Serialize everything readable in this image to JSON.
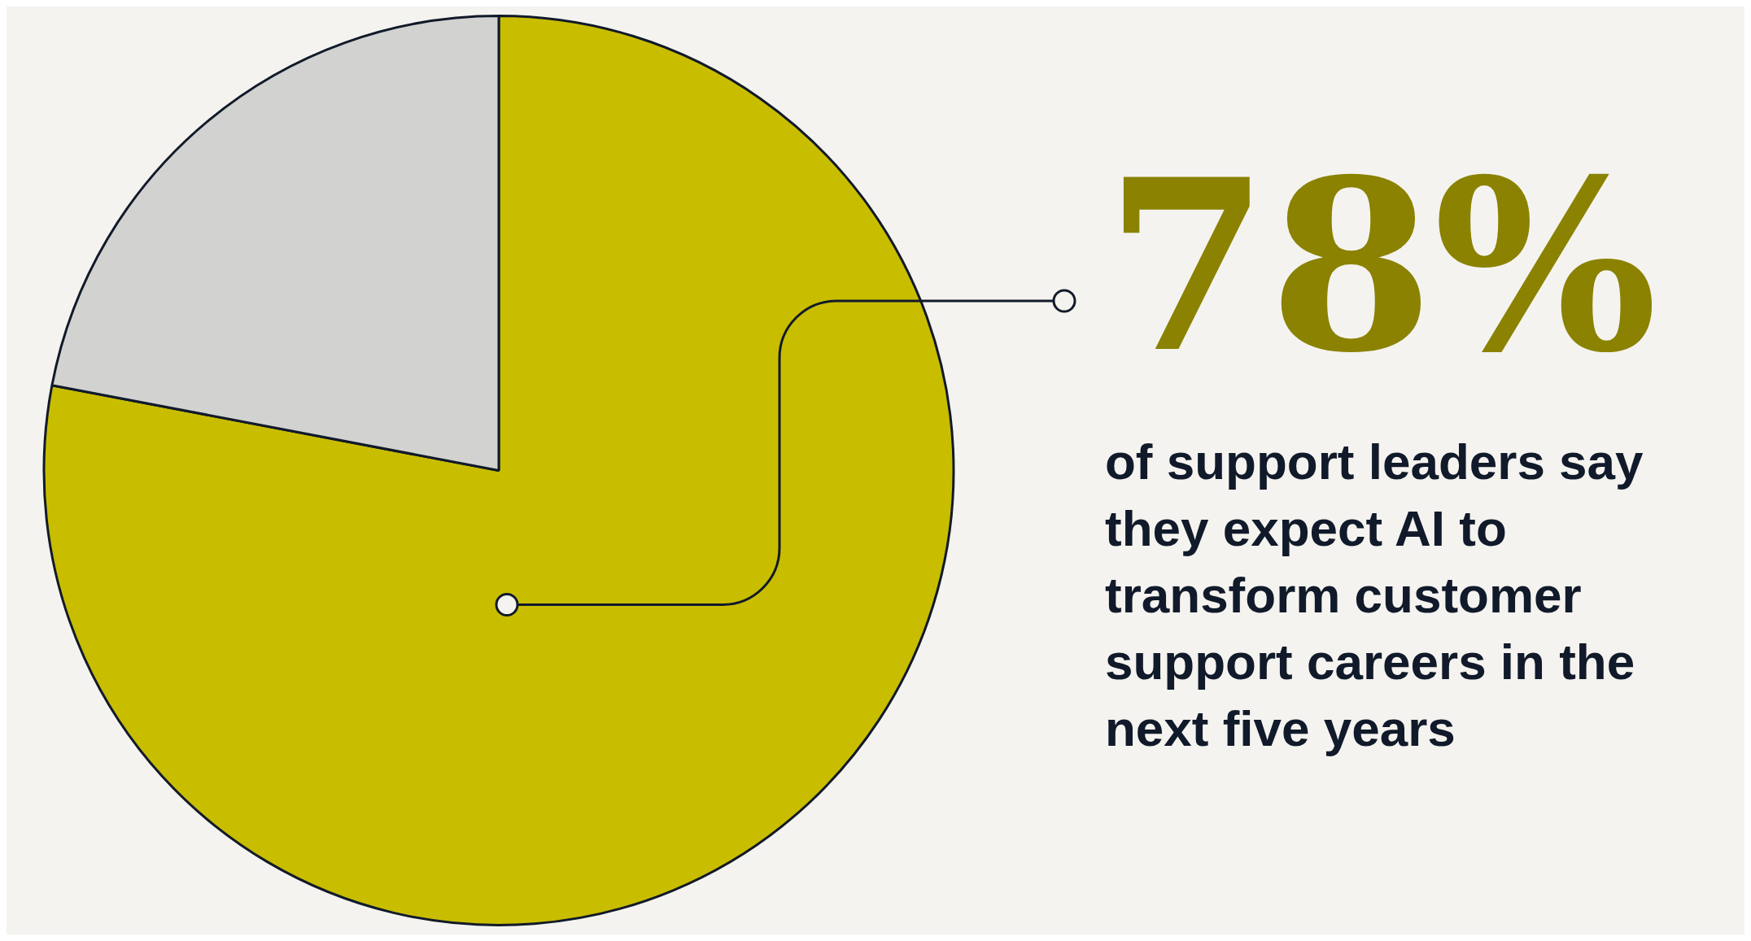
{
  "chart_data": {
    "type": "pie",
    "categories": [
      null,
      null
    ],
    "values": [
      78,
      22
    ],
    "colors": [
      "#c9bd00",
      "#d2d2d0"
    ],
    "value_labels": [
      "78%",
      null
    ],
    "legend": false,
    "annotations": [
      "of support leaders say they expect AI to transform customer support careers in the next five years"
    ]
  }
}
